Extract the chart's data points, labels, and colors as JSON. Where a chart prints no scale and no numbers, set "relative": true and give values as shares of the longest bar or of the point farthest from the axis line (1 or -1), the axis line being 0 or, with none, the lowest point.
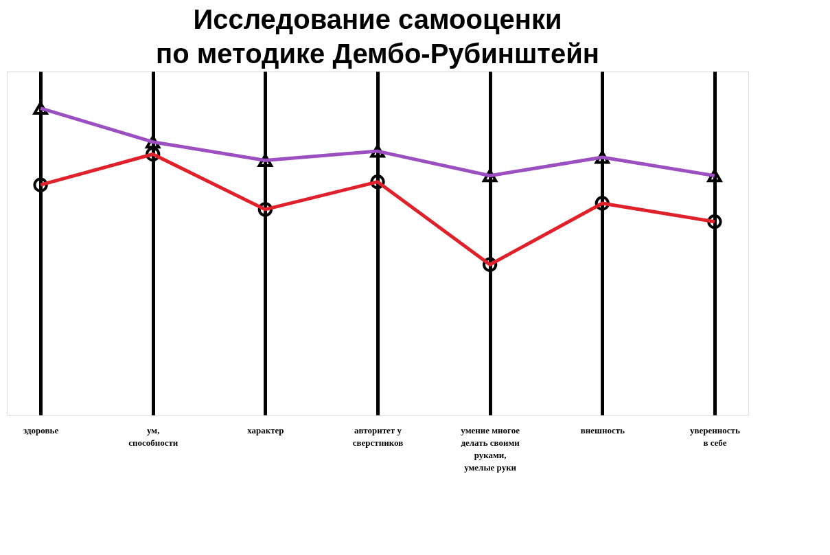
{
  "chart_data": {
    "type": "line",
    "title": "Исследование самооценки\nпо методике Дембо-Рубинштейн",
    "categories": [
      "здоровье",
      "ум,\nспособности",
      "характер",
      "авторитет у\nсверстников",
      "умение многое\nделать своими\nруками,\nумелые руки",
      "внешность",
      "уверенность\nв себе"
    ],
    "relative": true,
    "grid": "x",
    "line_style": "solid",
    "series": [
      {
        "color": "#9b4fc0",
        "marker": "triangle",
        "values": [
          1,
          0.89,
          0.83,
          0.86,
          0.78,
          0.84,
          0.78
        ]
      },
      {
        "color": "#e0202a",
        "marker": "circle",
        "values": [
          0.75,
          0.85,
          0.67,
          0.76,
          0.49,
          0.69,
          0.63
        ]
      }
    ]
  }
}
